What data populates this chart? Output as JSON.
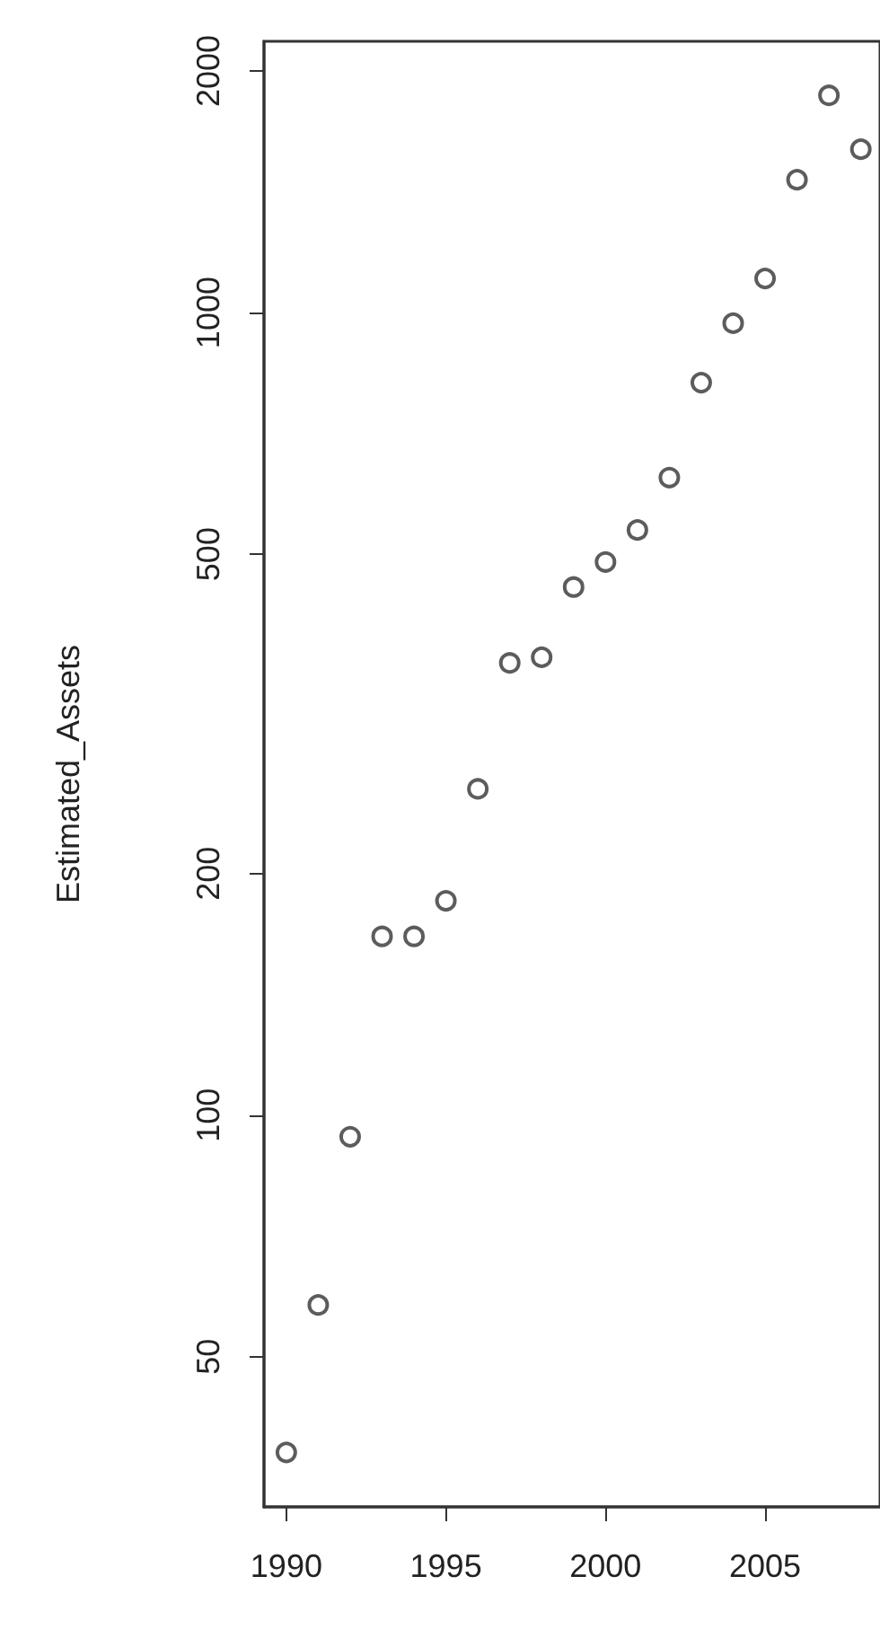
{
  "chart_data": {
    "type": "scatter",
    "ylabel": "Estimated_Assets",
    "log": "y",
    "grid": false,
    "marker": "circle",
    "xlim": [
      1989.3,
      2008.6
    ],
    "xticks": [
      1990,
      1995,
      2000,
      2005
    ],
    "ylim": [
      32.5,
      2178
    ],
    "yticks": [
      50,
      100,
      200,
      500,
      1000,
      2000
    ],
    "x": [
      1990,
      1991,
      1992,
      1993,
      1994,
      1995,
      1996,
      1997,
      1998,
      1999,
      2000,
      2001,
      2002,
      2003,
      2004,
      2005,
      2006,
      2007,
      2008
    ],
    "series": [
      {
        "color": "#333333",
        "values": [
          38,
          58,
          94,
          167,
          167,
          185,
          255,
          366,
          372,
          455,
          489,
          536,
          623,
          818,
          970,
          1103,
          1464,
          1865,
          1598
        ]
      }
    ]
  }
}
